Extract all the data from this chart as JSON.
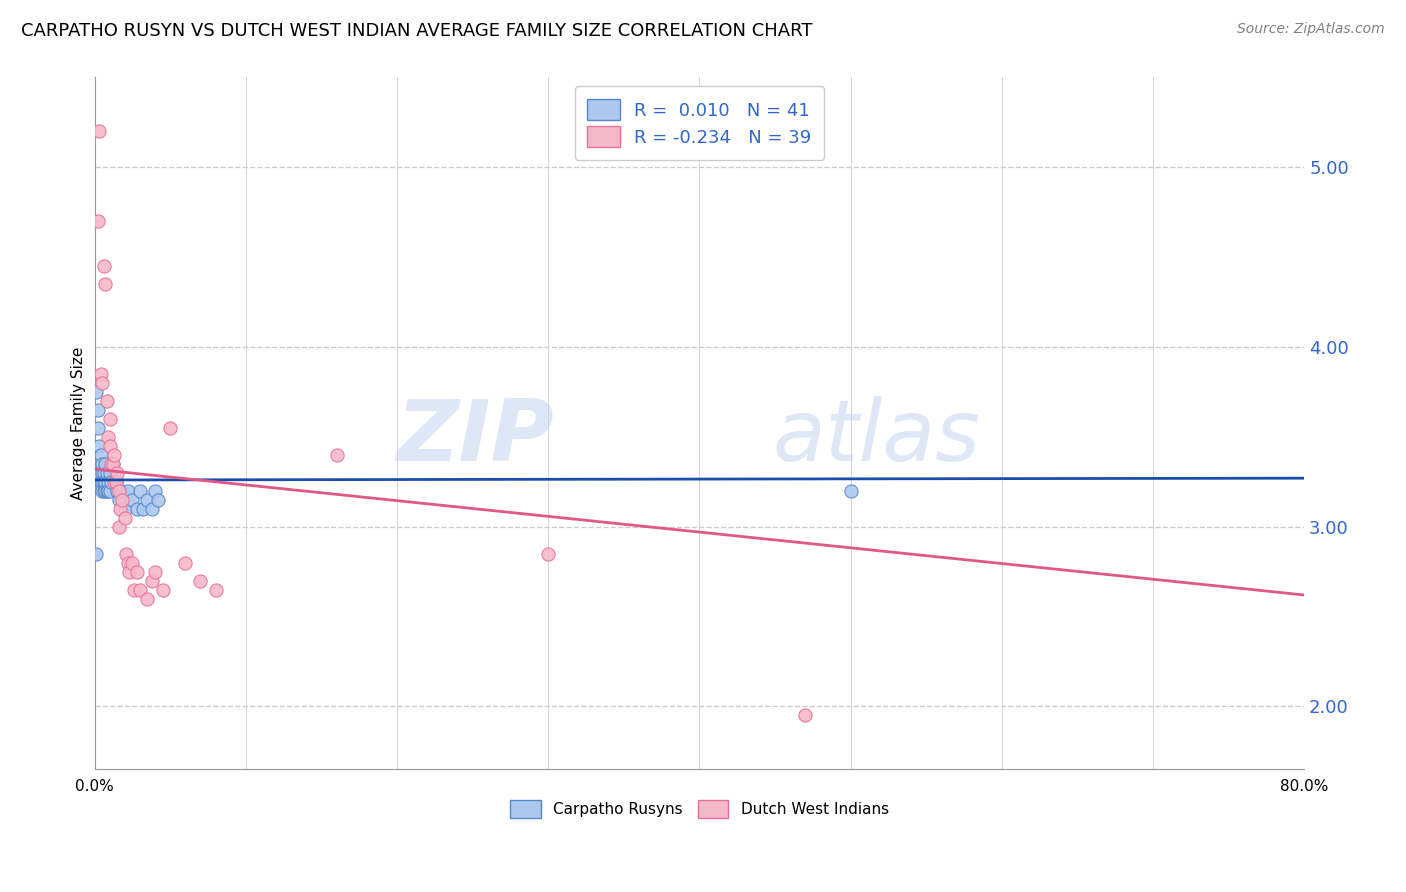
{
  "title": "CARPATHO RUSYN VS DUTCH WEST INDIAN AVERAGE FAMILY SIZE CORRELATION CHART",
  "source": "Source: ZipAtlas.com",
  "ylabel": "Average Family Size",
  "right_yticks": [
    2.0,
    3.0,
    4.0,
    5.0
  ],
  "legend_blue_r": "0.010",
  "legend_pink_r": "-0.234",
  "legend_blue_n": "41",
  "legend_pink_n": "39",
  "blue_fill": "#adc8ee",
  "blue_edge": "#5588cc",
  "pink_fill": "#f4b8c8",
  "pink_edge": "#e87098",
  "blue_line_color": "#1a4eaa",
  "pink_line_color": "#e05888",
  "watermark_color": "#c8d8f0",
  "grid_color": "#cccccc",
  "background_color": "#ffffff",
  "title_fontsize": 13,
  "source_fontsize": 10,
  "axis_label_fontsize": 11,
  "tick_fontsize": 11,
  "right_tick_color": "#3366cc",
  "blue_points_x": [
    0.001,
    0.002,
    0.002,
    0.003,
    0.003,
    0.004,
    0.004,
    0.005,
    0.005,
    0.005,
    0.005,
    0.006,
    0.006,
    0.006,
    0.007,
    0.007,
    0.007,
    0.008,
    0.008,
    0.009,
    0.009,
    0.01,
    0.01,
    0.011,
    0.012,
    0.014,
    0.015,
    0.016,
    0.018,
    0.02,
    0.022,
    0.025,
    0.028,
    0.03,
    0.032,
    0.035,
    0.038,
    0.04,
    0.042,
    0.001,
    0.5
  ],
  "blue_points_y": [
    3.75,
    3.65,
    3.55,
    3.45,
    3.3,
    3.4,
    3.25,
    3.35,
    3.3,
    3.25,
    3.2,
    3.3,
    3.25,
    3.2,
    3.35,
    3.25,
    3.2,
    3.3,
    3.2,
    3.25,
    3.2,
    3.3,
    3.2,
    3.25,
    3.35,
    3.25,
    3.2,
    3.15,
    3.2,
    3.1,
    3.2,
    3.15,
    3.1,
    3.2,
    3.1,
    3.15,
    3.1,
    3.2,
    3.15,
    2.85,
    3.2
  ],
  "pink_points_x": [
    0.002,
    0.003,
    0.004,
    0.005,
    0.006,
    0.007,
    0.008,
    0.009,
    0.01,
    0.01,
    0.011,
    0.012,
    0.013,
    0.013,
    0.014,
    0.015,
    0.016,
    0.016,
    0.017,
    0.018,
    0.02,
    0.021,
    0.022,
    0.023,
    0.025,
    0.026,
    0.028,
    0.03,
    0.035,
    0.038,
    0.04,
    0.045,
    0.05,
    0.06,
    0.07,
    0.08,
    0.16,
    0.3,
    0.47
  ],
  "pink_points_y": [
    4.7,
    5.2,
    3.85,
    3.8,
    4.45,
    4.35,
    3.7,
    3.5,
    3.6,
    3.45,
    3.35,
    3.35,
    3.4,
    3.25,
    3.25,
    3.3,
    3.2,
    3.0,
    3.1,
    3.15,
    3.05,
    2.85,
    2.8,
    2.75,
    2.8,
    2.65,
    2.75,
    2.65,
    2.6,
    2.7,
    2.75,
    2.65,
    3.55,
    2.8,
    2.7,
    2.65,
    3.4,
    2.85,
    1.95
  ],
  "xlim": [
    0.0,
    0.8
  ],
  "ylim": [
    1.65,
    5.5
  ],
  "blue_line_x": [
    0.0,
    0.8
  ],
  "blue_line_y": [
    3.26,
    3.27
  ],
  "pink_line_x": [
    0.0,
    0.8
  ],
  "pink_line_y": [
    3.32,
    2.62
  ]
}
